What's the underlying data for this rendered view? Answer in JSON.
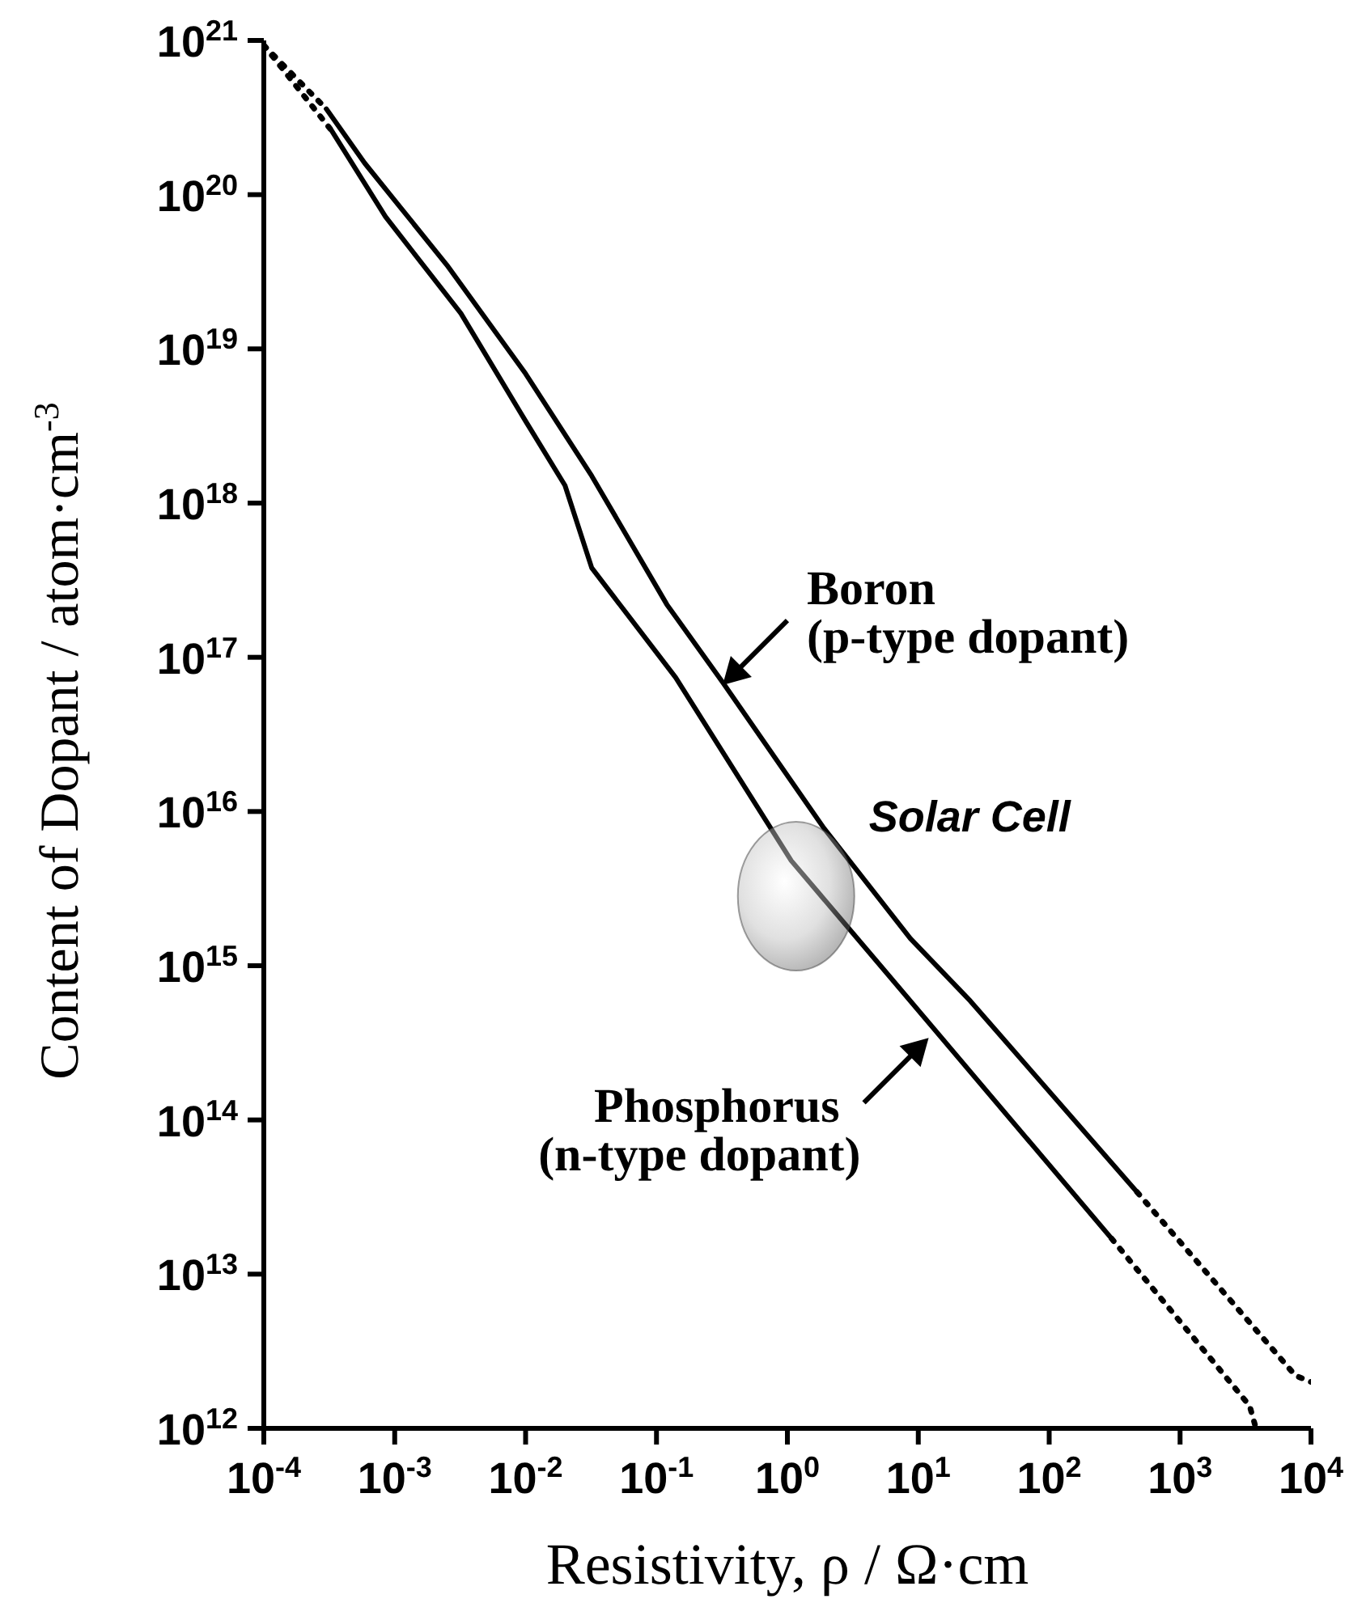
{
  "chart_data": {
    "type": "line",
    "xlabel": "Resistivity, ρ / Ω·cm",
    "ylabel": "Content of Dopant / atom·cm$^{-3}$",
    "log": "xy",
    "grid": false,
    "legend": false,
    "marker": "none",
    "xlim": [
      0.0001,
      10000
    ],
    "ylim": [
      1000000000000.0,
      1e+21
    ],
    "xticks": [
      {
        "value": 0.0001,
        "label": "10$^{-4}$"
      },
      {
        "value": 0.001,
        "label": "10$^{-3}$"
      },
      {
        "value": 0.01,
        "label": "10$^{-2}$"
      },
      {
        "value": 0.1,
        "label": "10$^{-1}$"
      },
      {
        "value": 1,
        "label": "10$^{0}$"
      },
      {
        "value": 10,
        "label": "10$^{1}$"
      },
      {
        "value": 100,
        "label": "10$^{2}$"
      },
      {
        "value": 1000,
        "label": "10$^{3}$"
      },
      {
        "value": 10000,
        "label": "10$^{4}$"
      }
    ],
    "yticks": [
      {
        "value": 1000000000000.0,
        "label": "10$^{12}$"
      },
      {
        "value": 10000000000000.0,
        "label": "10$^{13}$"
      },
      {
        "value": 100000000000000.0,
        "label": "10$^{14}$"
      },
      {
        "value": 1000000000000000.0,
        "label": "10$^{15}$"
      },
      {
        "value": 1e+16,
        "label": "10$^{16}$"
      },
      {
        "value": 1e+17,
        "label": "10$^{17}$"
      },
      {
        "value": 1e+18,
        "label": "10$^{18}$"
      },
      {
        "value": 1e+19,
        "label": "10$^{19}$"
      },
      {
        "value": 1e+20,
        "label": "10$^{20}$"
      },
      {
        "value": 1e+21,
        "label": "10$^{21}$"
      }
    ],
    "series": [
      {
        "color": "#000000",
        "line_style": "solid",
        "x": [
          0.0003,
          0.00059,
          0.0025,
          0.01,
          0.032,
          0.12,
          0.32,
          1.9,
          8.7,
          25,
          470
        ],
        "values": [
          3.6e+20,
          1.6e+20,
          3.5e+19,
          6.9e+18,
          1.5e+18,
          2.2e+17,
          6.9e+16,
          7800000000000000.0,
          1500000000000000.0,
          590000000000000.0,
          34000000000000.0
        ]
      },
      {
        "color": "#000000",
        "line_style": "dotted",
        "x": [
          0.0001,
          0.0003
        ],
        "values": [
          9.3e+20,
          3.6e+20
        ]
      },
      {
        "color": "#000000",
        "line_style": "dotted",
        "x": [
          470,
          7600,
          10000
        ],
        "values": [
          34000000000000.0,
          2200000000000.0,
          2000000000000.0
        ]
      },
      {
        "color": "#000000",
        "line_style": "solid",
        "x": [
          0.00033,
          0.00085,
          0.0032,
          0.01,
          0.02,
          0.032,
          0.14,
          1.07,
          4.9,
          300
        ],
        "values": [
          2.6e+20,
          7.2e+19,
          1.7e+19,
          3.4e+18,
          1.3e+18,
          3.8e+17,
          7.4e+16,
          4800000000000000.0,
          1050000000000000.0,
          17000000000000.0
        ]
      },
      {
        "color": "#000000",
        "line_style": "dotted",
        "x": [
          0.0001,
          0.00033
        ],
        "values": [
          9.3e+20,
          2.6e+20
        ]
      },
      {
        "color": "#000000",
        "line_style": "dotted",
        "x": [
          300,
          3400,
          3800
        ],
        "values": [
          17000000000000.0,
          1400000000000.0,
          1000000000000.0
        ]
      }
    ],
    "annotations": [
      {
        "text": "Boron\n(p-type dopant)",
        "x": 0.32,
        "y": 6.6e+16
      },
      {
        "text": "Phosphorus\n(n-type dopant)",
        "x": 12,
        "y": 340000000000000.0
      },
      {
        "text": "Solar Cell",
        "x": 1.07,
        "y": 4800000000000000.0
      }
    ]
  }
}
